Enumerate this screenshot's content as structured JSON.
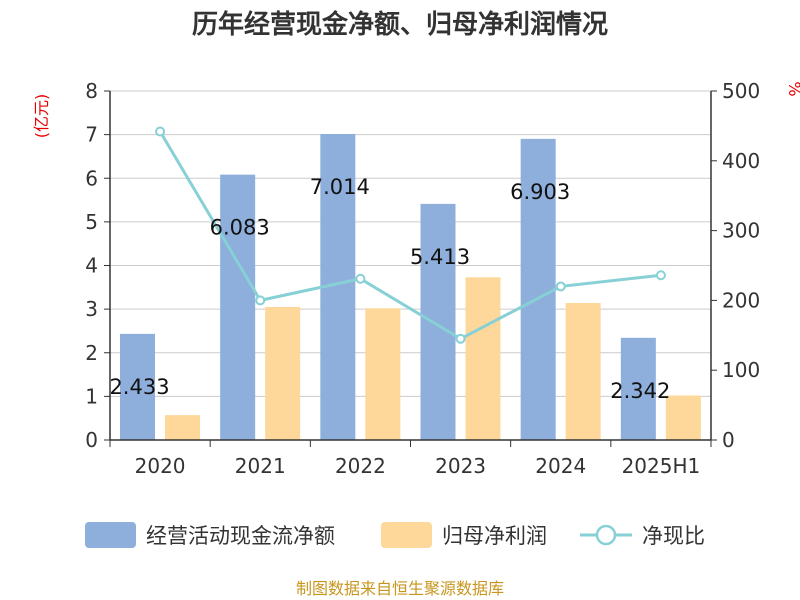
{
  "chart_data": {
    "type": "bar",
    "title": "历年经营现金净额、归母净利润情况",
    "categories": [
      "2020",
      "2021",
      "2022",
      "2023",
      "2024",
      "2025H1"
    ],
    "series": [
      {
        "name": "经营活动现金流净额",
        "type": "bar",
        "axis": "left",
        "color": "#8eaedb",
        "values": [
          2.433,
          6.083,
          7.014,
          5.413,
          6.903,
          2.342
        ]
      },
      {
        "name": "归母净利润",
        "type": "bar",
        "axis": "left",
        "color": "#fdd89a",
        "values": [
          0.57,
          3.05,
          3.02,
          3.73,
          3.14,
          1.02
        ]
      },
      {
        "name": "净现比",
        "type": "line",
        "axis": "right",
        "color": "#86d0d6",
        "values": [
          442,
          200,
          231,
          145,
          220,
          236
        ]
      }
    ],
    "data_labels": [
      "2.433",
      "6.083",
      "7.014",
      "5.413",
      "6.903",
      "2.342"
    ],
    "y_left": {
      "unit": "(亿元)",
      "min": 0,
      "max": 8,
      "ticks": [
        "0",
        "1",
        "2",
        "3",
        "4",
        "5",
        "6",
        "7",
        "8"
      ]
    },
    "y_right": {
      "unit": "%",
      "min": 0,
      "max": 500,
      "ticks": [
        "0",
        "100",
        "200",
        "300",
        "400",
        "500"
      ]
    },
    "grid": true,
    "legend_position": "bottom"
  },
  "legend": [
    "经营活动现金流净额",
    "归母净利润",
    "净现比"
  ],
  "source": "制图数据来自恒生聚源数据库"
}
